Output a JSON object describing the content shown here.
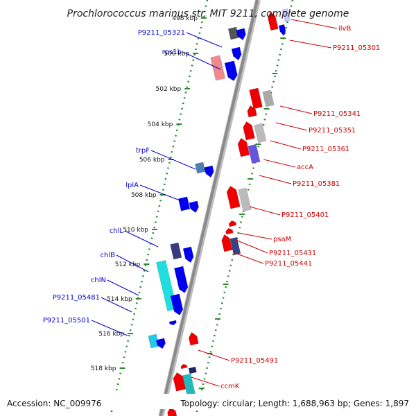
{
  "title": "Prochlorococcus marinus str. MIT 9211, complete genome",
  "footer": {
    "accession": "Accession: NC_009976",
    "topology": "Topology: circular; Length: 1,688,963 bp; Genes: 1,897"
  },
  "colors": {
    "forward_label": "#0000cc",
    "reverse_label": "#cc0000",
    "backbone": "#8a8a8a",
    "tick": "#2e8b2e",
    "forward_gene": "#0000ee",
    "reverse_gene": "#ee0000"
  },
  "ticks": [
    {
      "label": "498 kbp"
    },
    {
      "label": "500 kbp"
    },
    {
      "label": "502 kbp"
    },
    {
      "label": "504 kbp"
    },
    {
      "label": "506 kbp"
    },
    {
      "label": "508 kbp"
    },
    {
      "label": "510 kbp"
    },
    {
      "label": "512 kbp"
    },
    {
      "label": "514 kbp"
    },
    {
      "label": "516 kbp"
    },
    {
      "label": "518 kbp"
    }
  ],
  "forward_labels": [
    {
      "text": "P9211_05321"
    },
    {
      "text": "rps1b"
    },
    {
      "text": "trpF"
    },
    {
      "text": "lplA"
    },
    {
      "text": "chlL"
    },
    {
      "text": "chlB"
    },
    {
      "text": "chlN"
    },
    {
      "text": "P9211_05481"
    },
    {
      "text": "P9211_05501"
    }
  ],
  "reverse_labels": [
    {
      "text": "ilvB"
    },
    {
      "text": "P9211_05301"
    },
    {
      "text": "P9211_05341"
    },
    {
      "text": "P9211_05351"
    },
    {
      "text": "P9211_05361"
    },
    {
      "text": "accA"
    },
    {
      "text": "P9211_05381"
    },
    {
      "text": "P9211_05401"
    },
    {
      "text": "psaM"
    },
    {
      "text": "P9211_05431"
    },
    {
      "text": "P9211_05441"
    },
    {
      "text": "P9211_05491"
    },
    {
      "text": "ccmK"
    }
  ]
}
